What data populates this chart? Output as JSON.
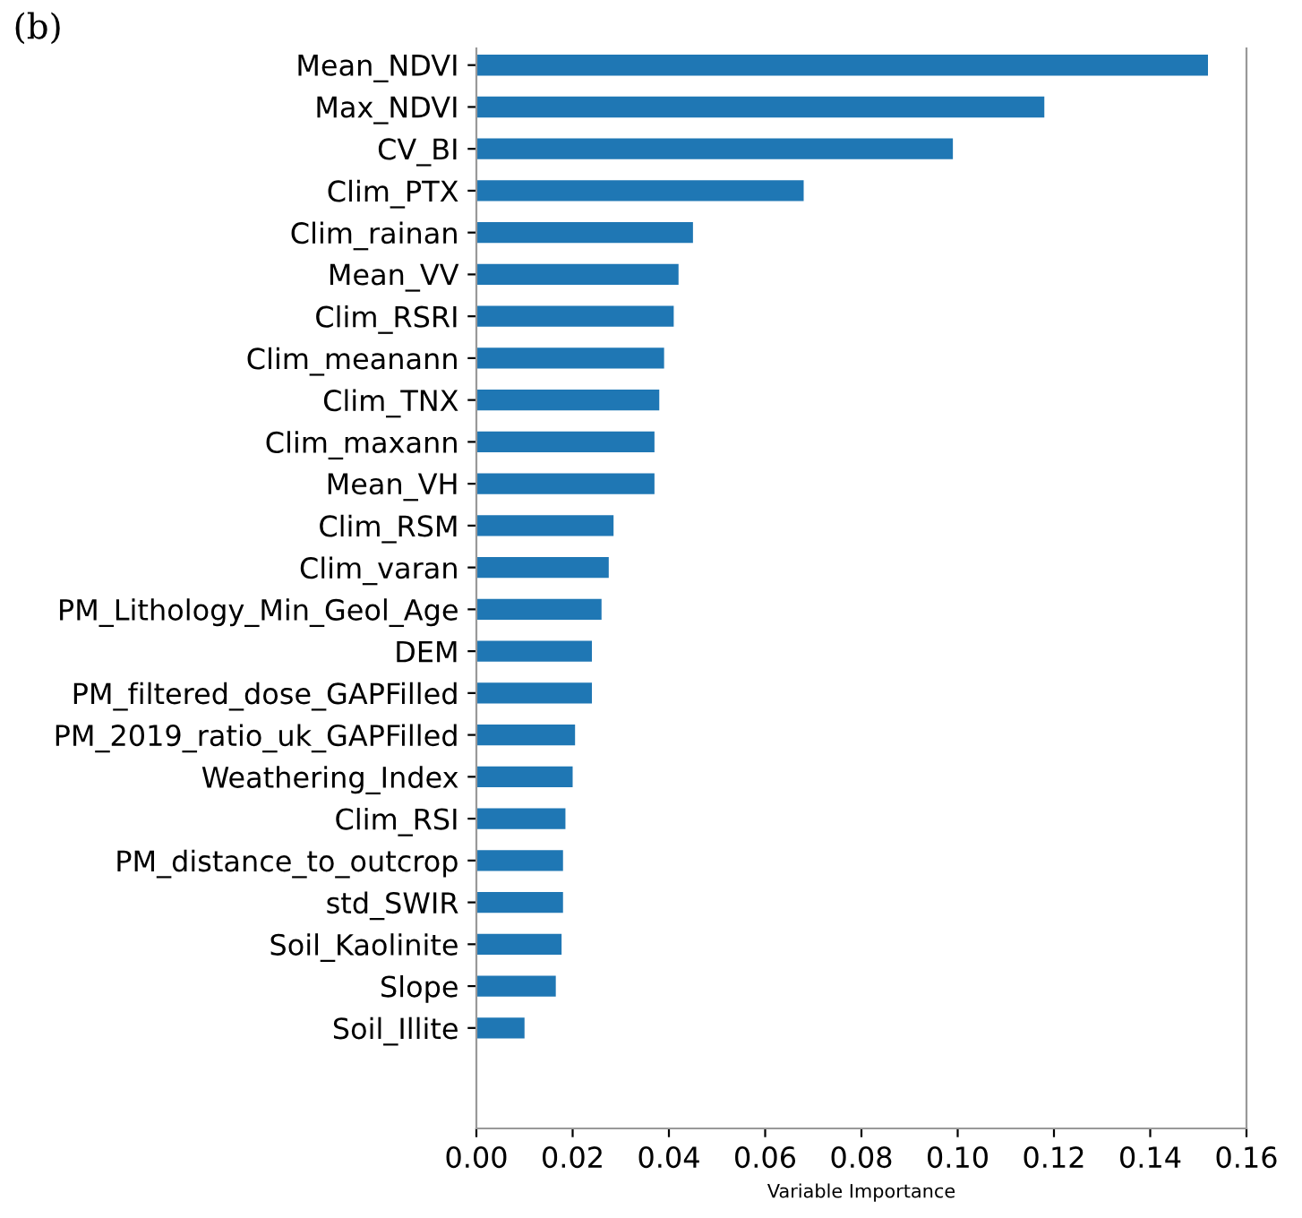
{
  "chart_data": {
    "type": "bar",
    "orientation": "horizontal",
    "xlabel": "Variable Importance",
    "annotations": [
      "(b)"
    ],
    "categories": [
      "Mean_NDVI",
      "Max_NDVI",
      "CV_BI",
      "Clim_PTX",
      "Clim_rainan",
      "Mean_VV",
      "Clim_RSRI",
      "Clim_meanann",
      "Clim_TNX",
      "Clim_maxann",
      "Mean_VH",
      "Clim_RSM",
      "Clim_varan",
      "PM_Lithology_Min_Geol_Age",
      "DEM",
      "PM_filtered_dose_GAPFilled",
      "PM_2019_ratio_uk_GAPFilled",
      "Weathering_Index",
      "Clim_RSI",
      "PM_distance_to_outcrop",
      "std_SWIR",
      "Soil_Kaolinite",
      "Slope",
      "Soil_Illite"
    ],
    "values": [
      0.152,
      0.118,
      0.099,
      0.068,
      0.045,
      0.042,
      0.041,
      0.039,
      0.038,
      0.037,
      0.037,
      0.0285,
      0.0275,
      0.026,
      0.024,
      0.024,
      0.0205,
      0.02,
      0.0185,
      0.018,
      0.018,
      0.0177,
      0.0165,
      0.01
    ],
    "color": "#1f77b4",
    "xlim": [
      0,
      0.16
    ],
    "xticks": [
      {
        "value": 0,
        "label": "0.00"
      },
      0.02,
      0.04,
      0.06,
      0.08,
      {
        "value": 0.1,
        "label": "0.10"
      },
      0.12,
      0.14,
      0.16
    ],
    "grid": false,
    "legend": false
  }
}
